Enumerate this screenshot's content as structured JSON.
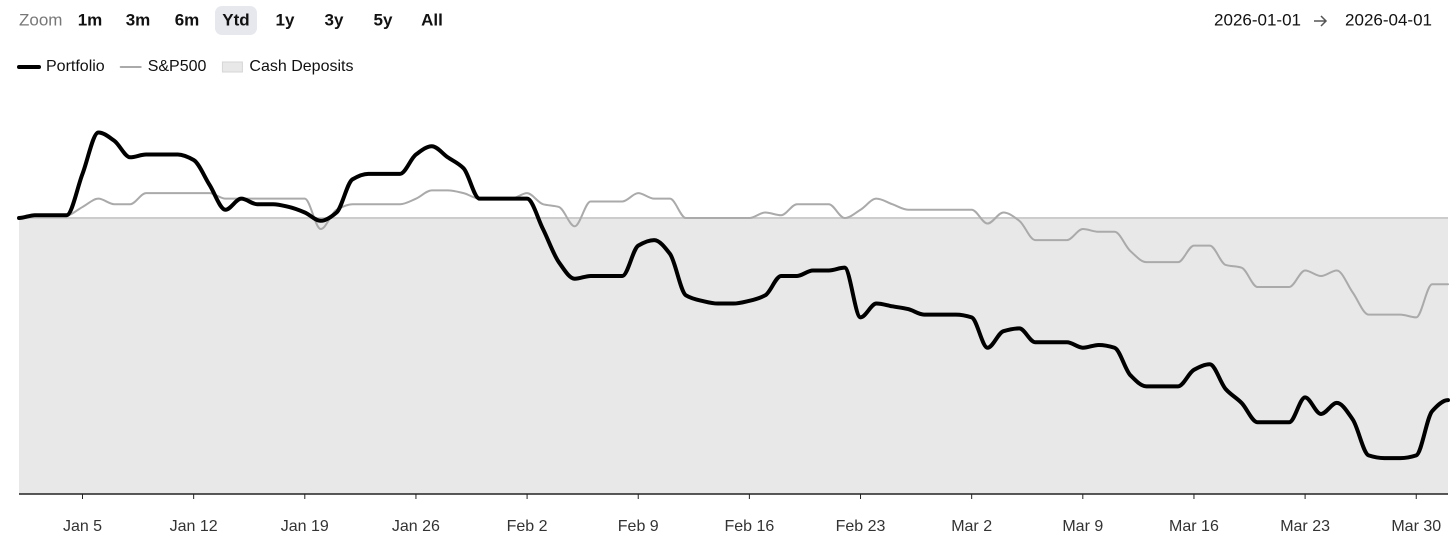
{
  "zoom": {
    "label": "Zoom",
    "options": [
      "1m",
      "3m",
      "6m",
      "Ytd",
      "1y",
      "3y",
      "5y",
      "All"
    ],
    "selected": 3
  },
  "date_range": {
    "start": "2026-01-01",
    "end": "2026-04-01"
  },
  "chart_data": {
    "type": "line",
    "x": [
      0,
      1,
      2,
      3,
      4,
      5,
      6,
      7,
      8,
      9,
      10,
      11,
      12,
      13,
      14,
      15,
      16,
      17,
      18,
      19,
      20,
      21,
      22,
      23,
      24,
      25,
      26,
      27,
      28,
      29,
      30,
      31,
      32,
      33,
      34,
      35,
      36,
      37,
      38,
      39,
      40,
      41,
      42,
      43,
      44,
      45,
      46,
      47,
      48,
      49,
      50,
      51,
      52,
      53,
      54,
      55,
      56,
      57,
      58,
      59,
      60,
      61,
      62,
      63,
      64,
      65,
      66,
      67,
      68,
      69,
      70,
      71,
      72,
      73,
      74,
      75,
      76,
      77,
      78,
      79,
      80,
      81,
      82,
      83,
      84,
      85,
      86,
      87,
      88,
      89,
      90
    ],
    "series": [
      {
        "name": "Portfolio",
        "color": "#000000",
        "values": [
          100,
          101,
          101,
          101,
          116,
          131,
          128,
          122,
          123,
          123,
          123,
          121,
          112,
          103,
          107,
          105,
          105,
          104,
          102,
          99,
          102,
          114,
          116,
          116,
          116,
          123,
          126,
          122,
          118,
          107,
          107,
          107,
          107,
          96,
          84,
          78,
          79,
          79,
          79,
          90,
          92,
          87,
          72,
          70,
          69,
          69,
          70,
          72,
          79,
          79,
          81,
          81,
          82,
          64,
          69,
          68,
          67,
          65,
          65,
          65,
          64,
          53,
          59,
          60,
          55,
          55,
          55,
          53,
          54,
          53,
          43,
          39,
          39,
          39,
          45,
          47,
          38,
          33,
          26,
          26,
          26,
          35,
          29,
          33,
          27,
          14,
          13,
          13,
          14,
          30,
          34
        ]
      },
      {
        "name": "S&P500",
        "color": "#aaaaaa",
        "values": [
          100,
          101,
          101,
          101,
          104,
          107,
          105,
          105,
          109,
          109,
          109,
          109,
          109,
          107,
          107,
          107,
          107,
          107,
          107,
          96,
          103,
          105,
          105,
          105,
          105,
          107,
          110,
          110,
          109,
          107,
          107,
          107,
          109,
          105,
          104,
          97,
          106,
          106,
          106,
          109,
          107,
          107,
          100,
          100,
          100,
          100,
          100,
          102,
          101,
          105,
          105,
          105,
          100,
          103,
          107,
          105,
          103,
          103,
          103,
          103,
          103,
          98,
          102,
          99,
          92,
          92,
          92,
          96,
          95,
          95,
          88,
          84,
          84,
          84,
          90,
          90,
          83,
          82,
          75,
          75,
          75,
          81,
          79,
          81,
          73,
          65,
          65,
          65,
          64,
          76,
          76
        ]
      },
      {
        "name": "Cash Deposits",
        "color": "#e8e8e8",
        "type": "area",
        "x": [
          0,
          90
        ],
        "values": [
          100,
          100
        ]
      }
    ],
    "xlim": [
      0,
      90
    ],
    "xticks": [
      {
        "value": 4,
        "label": "Jan 5"
      },
      {
        "value": 11,
        "label": "Jan 12"
      },
      {
        "value": 18,
        "label": "Jan 19"
      },
      {
        "value": 25,
        "label": "Jan 26"
      },
      {
        "value": 32,
        "label": "Feb 2"
      },
      {
        "value": 39,
        "label": "Feb 9"
      },
      {
        "value": 46,
        "label": "Feb 16"
      },
      {
        "value": 53,
        "label": "Feb 23"
      },
      {
        "value": 60,
        "label": "Mar 2"
      },
      {
        "value": 67,
        "label": "Mar 9"
      },
      {
        "value": 74,
        "label": "Mar 16"
      },
      {
        "value": 81,
        "label": "Mar 23"
      },
      {
        "value": 88,
        "label": "Mar 30"
      }
    ],
    "ylim": [
      0,
      145
    ]
  }
}
